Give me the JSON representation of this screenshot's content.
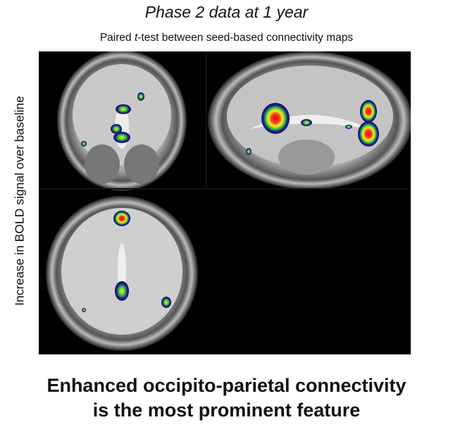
{
  "header": {
    "title": "Phase 2 data at 1 year",
    "subtitle_parts": [
      "Paired ",
      "t",
      "-test between seed-based connectivity maps"
    ]
  },
  "figure": {
    "y_label": "Increase in BOLD signal over baseline"
  },
  "footer": {
    "lines": [
      "Enhanced occipito-parietal connectivity",
      "is the most prominent feature"
    ]
  }
}
